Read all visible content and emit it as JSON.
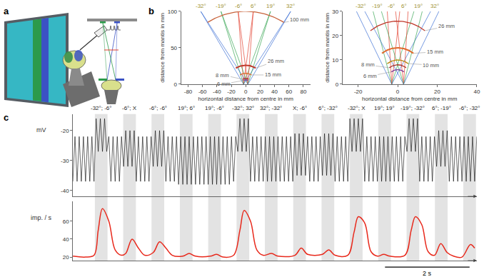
{
  "panel_labels": [
    "a",
    "b",
    "c"
  ],
  "chart_data": [
    {
      "type": "geometry",
      "xlabel": "horizontal distance from centre in mm",
      "ylabel": "distance from mantis in mm",
      "xlim": [
        -90,
        90
      ],
      "xticks": [
        -80,
        -60,
        -40,
        -20,
        0,
        20,
        40,
        60,
        80
      ],
      "ylim": [
        0,
        100
      ],
      "yticks": [
        0,
        50,
        100
      ],
      "screen_distance": 100,
      "eyes": [
        -3,
        3
      ],
      "color": "#9c8f2e",
      "angles": [
        {
          "value": -32,
          "label": "-32°"
        },
        {
          "value": -19,
          "label": "-19°"
        },
        {
          "value": -6,
          "label": "-6°"
        },
        {
          "value": 6,
          "label": "6°"
        },
        {
          "value": 19,
          "label": "19°"
        },
        {
          "value": 32,
          "label": "32°"
        }
      ],
      "colors": [
        "#3b6fd4",
        "#3aa655",
        "#e2412f",
        "#e2412f",
        "#3aa655",
        "#3b6fd4"
      ],
      "arcs": [
        {
          "r": 100,
          "label": "100 mm",
          "color": "#c8643c"
        },
        {
          "r": 26,
          "label": "26 mm",
          "color": "#c0392b"
        },
        {
          "r": 15,
          "label": "15 mm",
          "color": "#e06a2c"
        },
        {
          "r": 8,
          "label": "8 mm",
          "color": "#a93226"
        },
        {
          "r": 6,
          "label": "6 mm",
          "color": "#7d3c98"
        }
      ]
    },
    {
      "type": "geometry",
      "xlabel": "horizontal distance from centre in mm",
      "ylabel": "distance from mantis in mm",
      "xlim": [
        -28,
        40
      ],
      "xticks": [
        -20,
        0,
        20,
        40
      ],
      "ylim": [
        0,
        30
      ],
      "yticks": [
        0,
        10,
        20,
        30
      ],
      "screen_distance": 100,
      "eyes": [
        -3,
        3
      ],
      "color": "#9c8f2e",
      "angles": [
        {
          "value": -32,
          "label": "-32°"
        },
        {
          "value": -19,
          "label": "-19°"
        },
        {
          "value": -6,
          "label": "-6°"
        },
        {
          "value": 6,
          "label": "6°"
        },
        {
          "value": 19,
          "label": "19°"
        },
        {
          "value": 32,
          "label": "32°"
        }
      ],
      "colors": [
        "#3b6fd4",
        "#3aa655",
        "#e2412f",
        "#e2412f",
        "#3aa655",
        "#3b6fd4"
      ],
      "arcs": [
        {
          "r": 26,
          "label": "26 mm",
          "color": "#c0392b"
        },
        {
          "r": 15,
          "label": "15 mm",
          "color": "#e06a2c"
        },
        {
          "r": 10,
          "label": "10 mm",
          "color": "#b8860b"
        },
        {
          "r": 8,
          "label": "8 mm",
          "color": "#a93226"
        },
        {
          "r": 6,
          "label": "6 mm",
          "color": "#7d3c98"
        }
      ]
    },
    {
      "type": "line",
      "ylabel": "mV",
      "color": "#000000",
      "xlim": [
        0,
        9.55
      ],
      "ylim": [
        -42,
        -14.5
      ],
      "yticks": [
        -40,
        -30,
        -20
      ],
      "tick_labels": "y",
      "stimuli": [
        {
          "label": "-32°; -6°",
          "start": 0.52,
          "end": 0.82
        },
        {
          "label": "-6°; X",
          "start": 1.19,
          "end": 1.49
        },
        {
          "label": "-6°; -6°",
          "start": 1.86,
          "end": 2.16
        },
        {
          "label": "19°; 6°",
          "start": 2.53,
          "end": 2.83
        },
        {
          "label": "19°; -6°",
          "start": 3.2,
          "end": 3.5
        },
        {
          "label": "-32°; 32°",
          "start": 3.87,
          "end": 4.17
        },
        {
          "label": "32°; -32°",
          "start": 4.54,
          "end": 4.84
        },
        {
          "label": "X; -6°",
          "start": 5.21,
          "end": 5.51
        },
        {
          "label": "6°; -32°",
          "start": 5.88,
          "end": 6.18
        },
        {
          "label": "-32°; X",
          "start": 6.55,
          "end": 6.85
        },
        {
          "label": "19°; 19°",
          "start": 7.22,
          "end": 7.52
        },
        {
          "label": "-19°; -32°",
          "start": 7.89,
          "end": 8.19
        },
        {
          "label": "6°; -19°",
          "start": 8.56,
          "end": 8.86
        },
        {
          "label": "-6°; -32°",
          "start": 9.23,
          "end": 9.53
        }
      ],
      "x": [
        0,
        0.05,
        0.1,
        0.15,
        0.2,
        0.25,
        0.3,
        0.35,
        0.4,
        0.45,
        0.5,
        0.55,
        0.6,
        0.65,
        0.7,
        0.75,
        0.8,
        0.85,
        0.9,
        0.95,
        1,
        1.05,
        1.1,
        1.15,
        1.2,
        1.25,
        1.3,
        1.35,
        1.4,
        1.45,
        1.5,
        1.55,
        1.6,
        1.65,
        1.7,
        1.75,
        1.8,
        1.85,
        1.9,
        1.95,
        2,
        2.05,
        2.1,
        2.15,
        2.2,
        2.25,
        2.3,
        2.35,
        2.4,
        2.45,
        2.5,
        2.55,
        2.6,
        2.65,
        2.7,
        2.75,
        2.8,
        2.85,
        2.9,
        2.95,
        3,
        3.05,
        3.1,
        3.15,
        3.2,
        3.25,
        3.3,
        3.35,
        3.4,
        3.45,
        3.5,
        3.55,
        3.6,
        3.65,
        3.7,
        3.75,
        3.8,
        3.85,
        3.9,
        3.95,
        4,
        4.05,
        4.1,
        4.15,
        4.2,
        4.25,
        4.3,
        4.35,
        4.4,
        4.45,
        4.5,
        4.55,
        4.6,
        4.65,
        4.7,
        4.75,
        4.8,
        4.85,
        4.9,
        4.95,
        5,
        5.05,
        5.1,
        5.15,
        5.2,
        5.25,
        5.3,
        5.35,
        5.4,
        5.45,
        5.5,
        5.55,
        5.6,
        5.65,
        5.7,
        5.75,
        5.8,
        5.85,
        5.9,
        5.95,
        6,
        6.05,
        6.1,
        6.15,
        6.2,
        6.25,
        6.3,
        6.35,
        6.4,
        6.45,
        6.5,
        6.55,
        6.6,
        6.65,
        6.7,
        6.75,
        6.8,
        6.85,
        6.9,
        6.95,
        7,
        7.05,
        7.1,
        7.15,
        7.2,
        7.25,
        7.3,
        7.35,
        7.4,
        7.45,
        7.5,
        7.55,
        7.6,
        7.65,
        7.7,
        7.75,
        7.8,
        7.85,
        7.9,
        7.95,
        8,
        8.05,
        8.1,
        8.15,
        8.2,
        8.25,
        8.3,
        8.35,
        8.4,
        8.45,
        8.5,
        8.55,
        8.6,
        8.65,
        8.7,
        8.75,
        8.8,
        8.85,
        8.9,
        8.95,
        9,
        9.05,
        9.1,
        9.15,
        9.2,
        9.25,
        9.3,
        9.35,
        9.4,
        9.45,
        9.5,
        9.55
      ],
      "values": [
        -37,
        -22,
        -37,
        -22,
        -37,
        -22,
        -37,
        -22,
        -37,
        -22,
        -37,
        -16,
        -27,
        -16,
        -27,
        -16,
        -27,
        -22,
        -37,
        -22,
        -37,
        -22,
        -37,
        -22,
        -32,
        -20,
        -32,
        -20,
        -32,
        -20,
        -37,
        -22,
        -37,
        -22,
        -37,
        -22,
        -37,
        -22,
        -32,
        -20,
        -32,
        -20,
        -32,
        -20,
        -37,
        -22,
        -37,
        -22,
        -37,
        -22,
        -38,
        -22,
        -38,
        -22,
        -38,
        -22,
        -38,
        -22,
        -38,
        -22,
        -38,
        -22,
        -38,
        -22,
        -38,
        -22,
        -38,
        -22,
        -38,
        -22,
        -38,
        -22,
        -38,
        -22,
        -38,
        -22,
        -37,
        -22,
        -27,
        -16,
        -27,
        -16,
        -27,
        -16,
        -37,
        -22,
        -37,
        -22,
        -37,
        -22,
        -37,
        -22,
        -37,
        -22,
        -37,
        -22,
        -37,
        -22,
        -37,
        -22,
        -37,
        -22,
        -37,
        -22,
        -37,
        -21,
        -35,
        -21,
        -35,
        -21,
        -35,
        -22,
        -37,
        -22,
        -37,
        -22,
        -37,
        -22,
        -35,
        -21,
        -35,
        -21,
        -35,
        -21,
        -37,
        -22,
        -37,
        -22,
        -37,
        -22,
        -37,
        -16,
        -27,
        -16,
        -27,
        -16,
        -27,
        -16,
        -37,
        -22,
        -37,
        -22,
        -37,
        -22,
        -37,
        -22,
        -37,
        -22,
        -37,
        -22,
        -37,
        -22,
        -37,
        -22,
        -37,
        -22,
        -37,
        -22,
        -27,
        -16,
        -27,
        -16,
        -27,
        -16,
        -37,
        -22,
        -37,
        -22,
        -37,
        -22,
        -37,
        -22,
        -32,
        -20,
        -32,
        -20,
        -32,
        -20,
        -37,
        -22,
        -37,
        -22,
        -37,
        -22,
        -37,
        -22,
        -37,
        -22,
        -37,
        -22,
        -37,
        -22
      ]
    },
    {
      "type": "line",
      "ylabel": "imp. / s",
      "color": "#e8291c",
      "xlim": [
        0,
        9.55
      ],
      "ylim": [
        16,
        82
      ],
      "yticks": [
        20,
        40,
        60
      ],
      "tick_labels": "y",
      "scale_bar": {
        "start": 7.38,
        "length": 2,
        "label": "2 s"
      },
      "x": [
        0,
        0.3,
        0.5,
        0.6,
        0.7,
        0.85,
        1.0,
        1.15,
        1.25,
        1.4,
        1.55,
        1.7,
        1.9,
        2.05,
        2.2,
        2.35,
        2.6,
        2.75,
        2.9,
        3.25,
        3.4,
        3.55,
        3.8,
        3.95,
        4.05,
        4.2,
        4.35,
        4.5,
        4.7,
        4.85,
        5.25,
        5.4,
        5.55,
        5.9,
        6.05,
        6.2,
        6.5,
        6.65,
        6.75,
        6.9,
        7.05,
        7.2,
        7.35,
        7.5,
        7.85,
        8.0,
        8.1,
        8.25,
        8.4,
        8.55,
        8.7,
        8.85,
        9.0,
        9.2,
        9.4,
        9.5
      ],
      "values": [
        21,
        20,
        22,
        50,
        74,
        60,
        28,
        22,
        24,
        40,
        30,
        22,
        25,
        37,
        30,
        22,
        21,
        24,
        21,
        21,
        23,
        20,
        22,
        50,
        72,
        60,
        28,
        22,
        24,
        21,
        22,
        30,
        23,
        23,
        28,
        22,
        22,
        48,
        65,
        58,
        26,
        21,
        23,
        21,
        22,
        50,
        65,
        56,
        26,
        22,
        35,
        25,
        21,
        20,
        34,
        30
      ]
    }
  ]
}
